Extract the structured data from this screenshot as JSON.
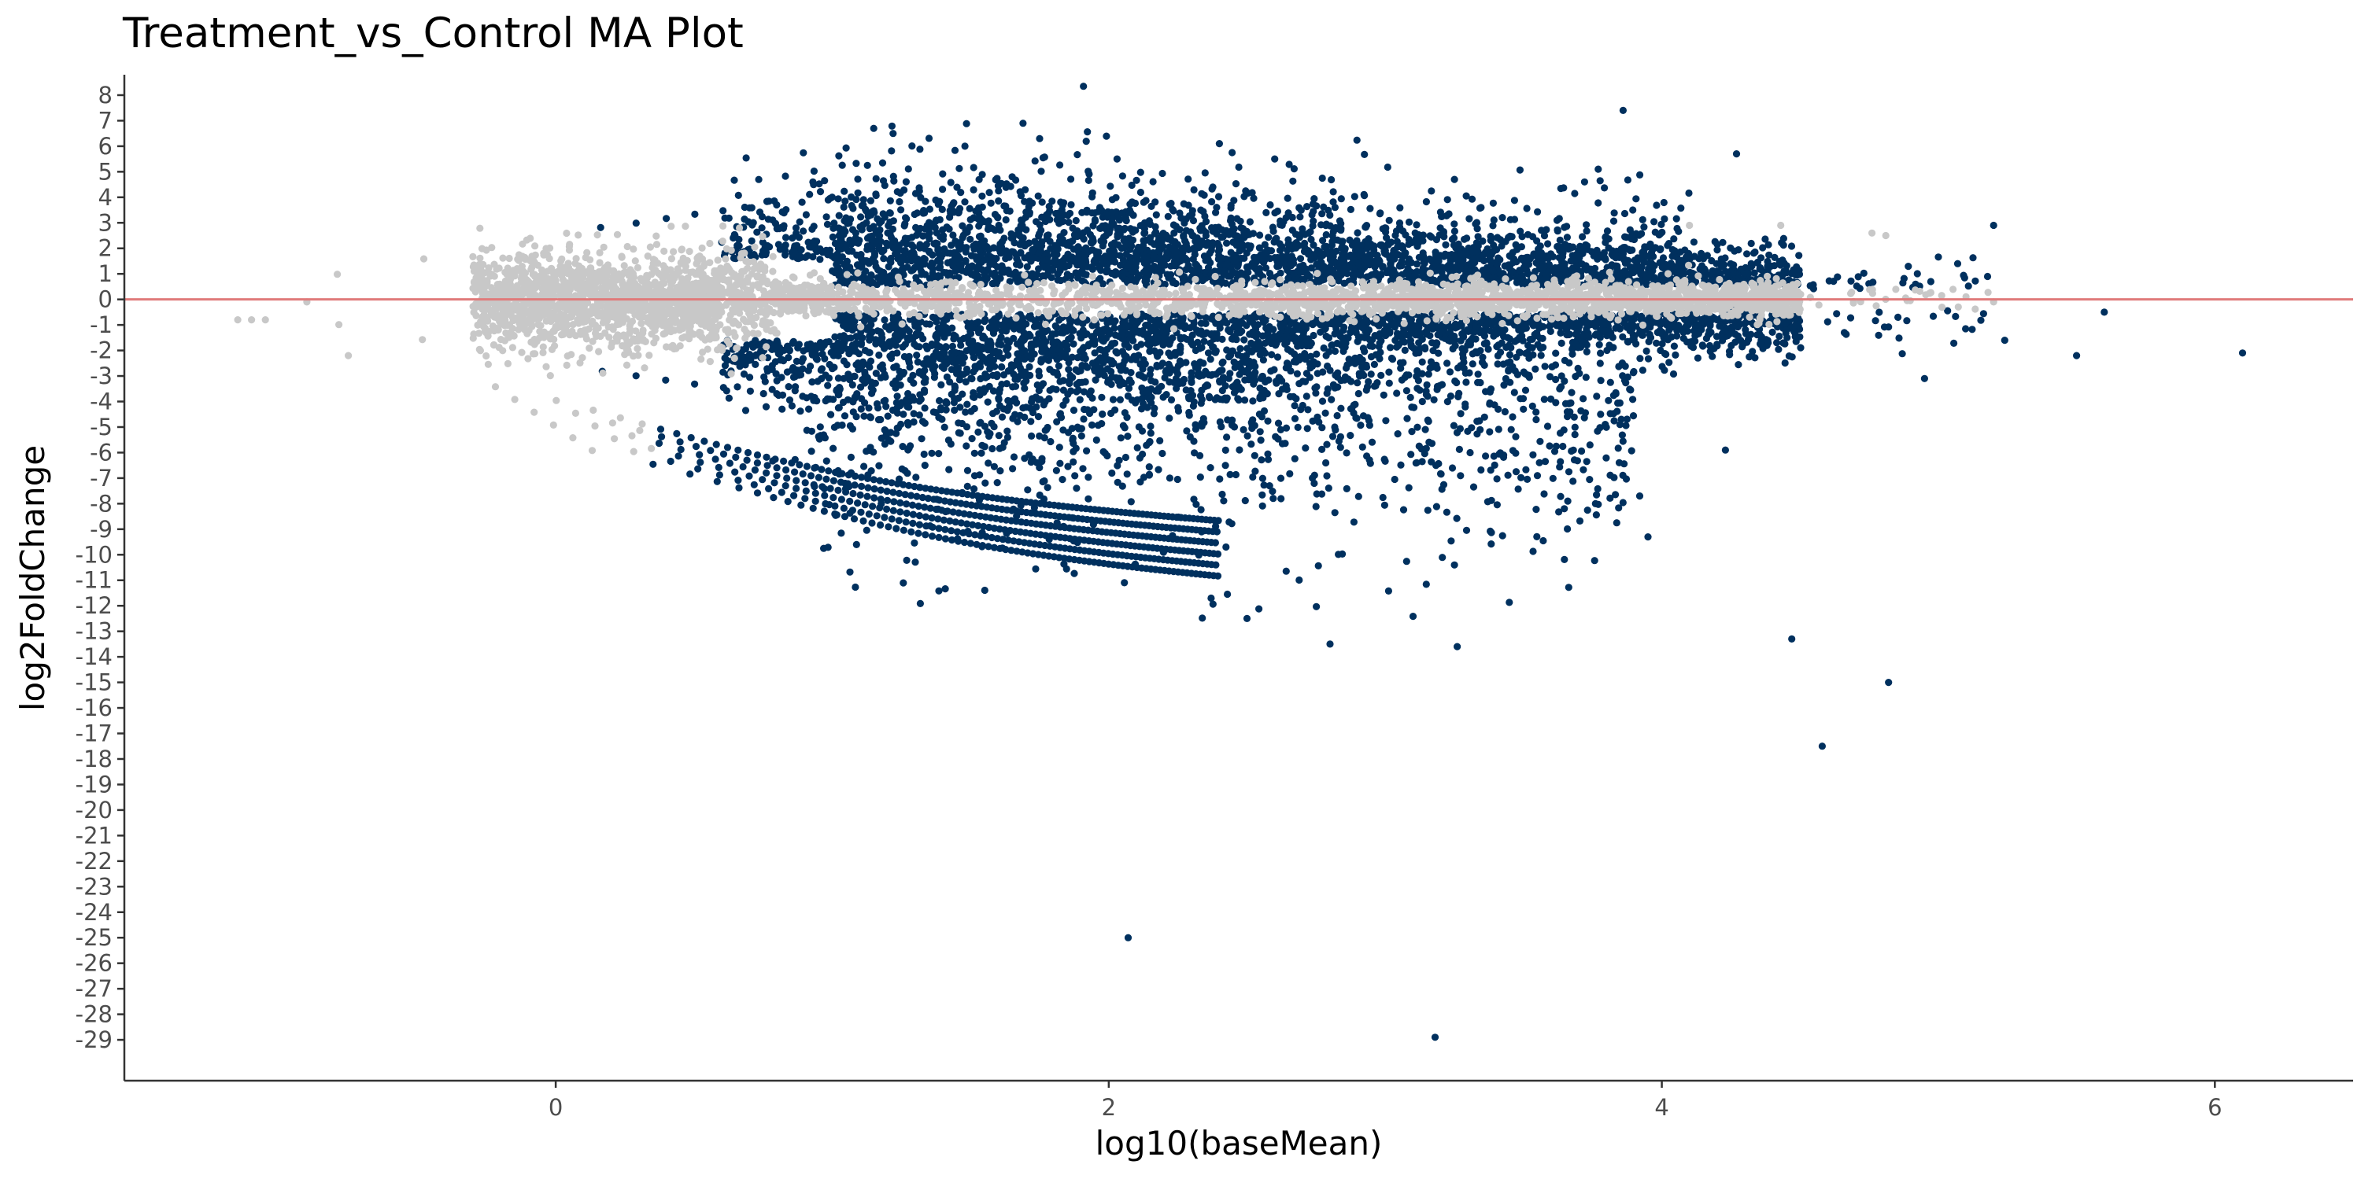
{
  "chart_data": {
    "type": "scatter",
    "title": "Treatment_vs_Control MA Plot",
    "xlabel": "log10(baseMean)",
    "ylabel": "log2FoldChange",
    "xlim": [
      -1.56,
      6.5
    ],
    "ylim": [
      -30.6,
      8.8
    ],
    "x_ticks": [
      0,
      2,
      4,
      6
    ],
    "y_ticks": [
      8,
      7,
      6,
      5,
      4,
      3,
      2,
      1,
      0,
      -1,
      -2,
      -3,
      -4,
      -5,
      -6,
      -7,
      -8,
      -9,
      -10,
      -11,
      -12,
      -13,
      -14,
      -15,
      -16,
      -17,
      -18,
      -19,
      -20,
      -21,
      -22,
      -23,
      -24,
      -25,
      -26,
      -27,
      -28,
      -29
    ],
    "grid": false,
    "reference_line": {
      "y": 0,
      "color": "#e07b7b"
    },
    "colors": {
      "significant": "#00305e",
      "not_significant": "#c8c8c8"
    },
    "series": [
      {
        "key": "significant",
        "note": "representative outlier points read from the plot; the dense cloud is drawn procedurally",
        "points": [
          [
            1.15,
            6.7
          ],
          [
            1.22,
            6.5
          ],
          [
            1.48,
            6.0
          ],
          [
            1.69,
            6.9
          ],
          [
            1.75,
            6.3
          ],
          [
            2.03,
            5.5
          ],
          [
            2.4,
            6.1
          ],
          [
            2.6,
            5.5
          ],
          [
            3.25,
            4.7
          ],
          [
            3.86,
            7.4
          ],
          [
            4.27,
            5.7
          ],
          [
            3.77,
            5.1
          ],
          [
            5.2,
            2.9
          ],
          [
            5.07,
            1.4
          ],
          [
            5.24,
            -1.6
          ],
          [
            5.5,
            -2.2
          ],
          [
            5.6,
            -0.5
          ],
          [
            6.1,
            -2.1
          ],
          [
            4.95,
            -3.1
          ],
          [
            4.66,
            -1.3
          ],
          [
            3.92,
            -7.7
          ],
          [
            3.76,
            -8.0
          ],
          [
            3.95,
            -9.3
          ],
          [
            3.25,
            -10.4
          ],
          [
            4.23,
            -5.9
          ],
          [
            2.8,
            -13.5
          ],
          [
            3.26,
            -13.6
          ],
          [
            4.47,
            -13.3
          ],
          [
            4.82,
            -15.0
          ],
          [
            4.58,
            -17.5
          ],
          [
            2.07,
            -25.0
          ],
          [
            3.18,
            -28.9
          ],
          [
            2.5,
            -12.5
          ],
          [
            2.37,
            -11.7
          ],
          [
            3.55,
            -6.9
          ]
        ]
      },
      {
        "key": "not_significant",
        "note": "representative points read from the plot; the dense cloud is drawn procedurally",
        "points": [
          [
            -1.15,
            -0.8
          ],
          [
            -1.1,
            -0.8
          ],
          [
            -1.05,
            -0.8
          ],
          [
            -0.9,
            -0.1
          ],
          [
            -0.75,
            -2.2
          ],
          [
            4.1,
            2.9
          ],
          [
            4.43,
            2.9
          ],
          [
            4.76,
            2.6
          ],
          [
            4.81,
            2.5
          ],
          [
            5.1,
            0.1
          ],
          [
            5.2,
            -0.1
          ]
        ]
      }
    ]
  }
}
